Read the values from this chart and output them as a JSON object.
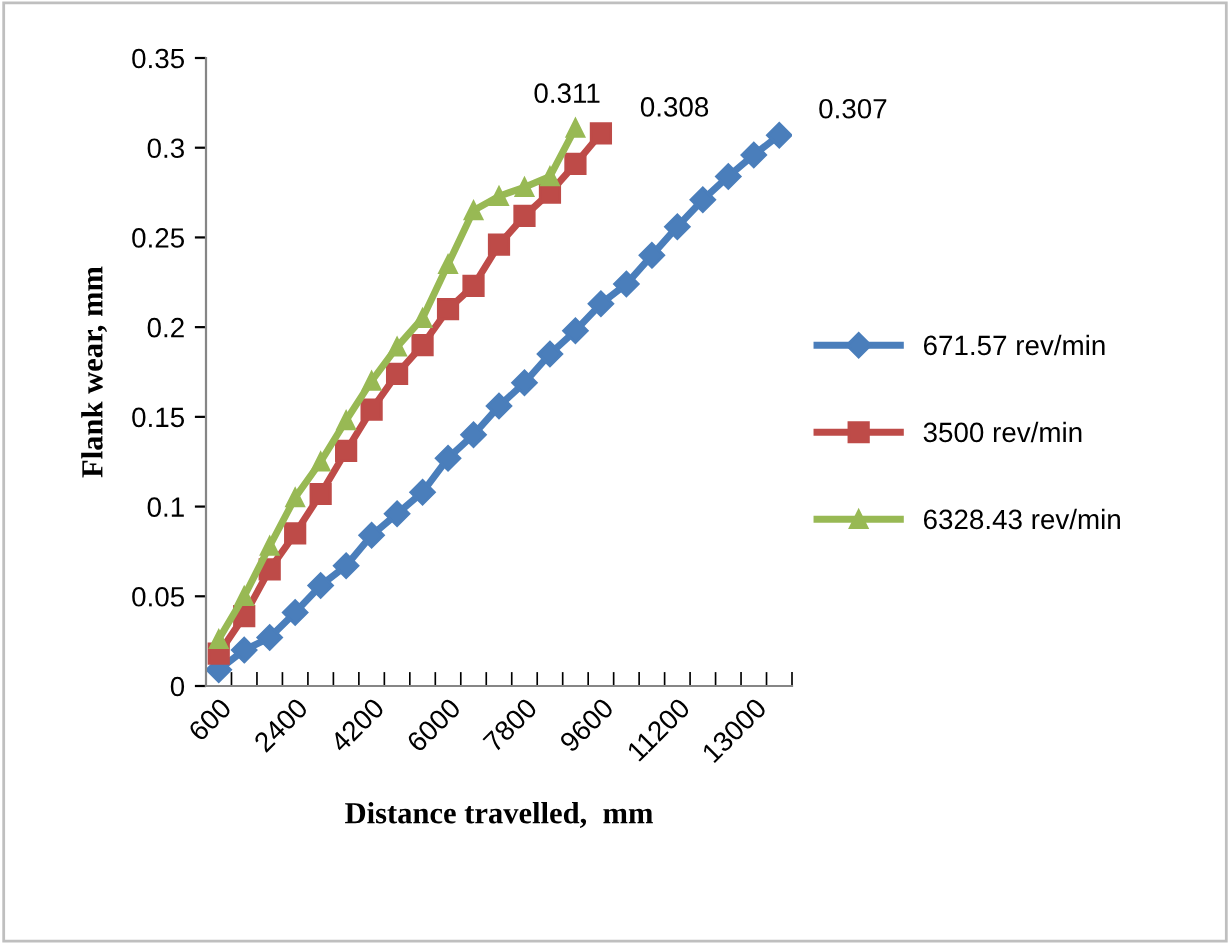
{
  "chart_data": {
    "type": "line",
    "xlabel": "Distance travelled,  mm",
    "ylabel": "Flank wear, mm",
    "categories": [
      "600",
      null,
      null,
      "2400",
      null,
      null,
      "4200",
      null,
      null,
      "6000",
      null,
      null,
      "7800",
      null,
      null,
      "9600",
      null,
      null,
      "11200",
      null,
      null,
      "13000",
      null
    ],
    "series": [
      {
        "name": "671.57 rev/min",
        "color": "#4a7ebb",
        "marker": "diamond",
        "values": [
          0.009,
          0.02,
          0.027,
          0.041,
          0.056,
          0.067,
          0.084,
          0.096,
          0.108,
          0.127,
          0.14,
          0.156,
          0.169,
          0.185,
          0.198,
          0.213,
          0.224,
          0.24,
          0.256,
          0.271,
          0.284,
          0.296,
          0.307
        ],
        "value_labels": [
          null,
          null,
          null,
          null,
          null,
          null,
          null,
          null,
          null,
          null,
          null,
          null,
          null,
          null,
          null,
          null,
          null,
          null,
          null,
          null,
          null,
          null,
          "0.307"
        ]
      },
      {
        "name": "3500 rev/min",
        "color": "#be4b48",
        "marker": "square",
        "values": [
          0.018,
          0.039,
          0.065,
          0.085,
          0.107,
          0.131,
          0.154,
          0.174,
          0.19,
          0.21,
          0.223,
          0.246,
          0.262,
          0.275,
          0.291,
          0.308,
          null,
          null,
          null,
          null,
          null,
          null,
          null
        ],
        "value_labels": [
          null,
          null,
          null,
          null,
          null,
          null,
          null,
          null,
          null,
          null,
          null,
          null,
          null,
          null,
          null,
          "0.308",
          null,
          null,
          null,
          null,
          null,
          null,
          null
        ]
      },
      {
        "name": "6328.43 rev/min",
        "color": "#98b954",
        "marker": "triangle",
        "values": [
          0.026,
          0.05,
          0.078,
          0.105,
          0.125,
          0.148,
          0.17,
          0.189,
          0.205,
          0.235,
          0.265,
          0.273,
          0.278,
          0.284,
          0.311,
          null,
          null,
          null,
          null,
          null,
          null,
          null,
          null
        ],
        "value_labels": [
          null,
          null,
          null,
          null,
          null,
          null,
          null,
          null,
          null,
          null,
          null,
          null,
          null,
          null,
          "0.311",
          null,
          null,
          null,
          null,
          null,
          null,
          null,
          null
        ]
      }
    ],
    "ylim": [
      0,
      0.35
    ],
    "yticks": [
      {
        "value": 0,
        "label": "0"
      },
      0.05,
      0.1,
      0.15,
      0.2,
      0.25,
      0.3,
      0.35
    ],
    "legend": "right",
    "grid": false
  }
}
